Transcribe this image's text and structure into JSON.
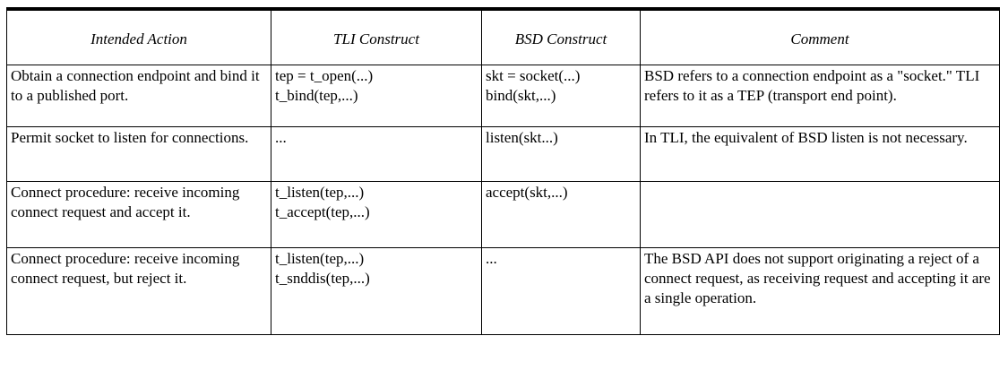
{
  "headers": [
    "Intended Action",
    "TLI Construct",
    "BSD Construct",
    "Comment"
  ],
  "rows": [
    {
      "action": "Obtain a connection endpoint and bind it to a published port.",
      "tli": [
        "tep = t_open(...)",
        "t_bind(tep,...)"
      ],
      "bsd": [
        "skt = socket(...)",
        "bind(skt,...)"
      ],
      "comment": "BSD refers to a connection endpoint as a \"socket.\" TLI refers to it as a TEP (transport end point)."
    },
    {
      "action": "Permit socket to listen for connections.",
      "tli": [
        "..."
      ],
      "bsd": [
        "listen(skt...)"
      ],
      "comment": "In TLI, the equivalent of BSD listen is not necessary."
    },
    {
      "action": "Connect procedure: receive incoming connect request and accept it.",
      "tli": [
        "t_listen(tep,...)",
        "t_accept(tep,...)"
      ],
      "bsd": [
        "accept(skt,...)"
      ],
      "comment": ""
    },
    {
      "action": "Connect procedure: receive incoming connect request, but reject it.",
      "tli": [
        "t_listen(tep,...)",
        "t_snddis(tep,...)"
      ],
      "bsd": [
        "..."
      ],
      "comment": "The BSD API does not support originating a reject of a connect request, as receiving request and accepting it are a single operation."
    }
  ]
}
